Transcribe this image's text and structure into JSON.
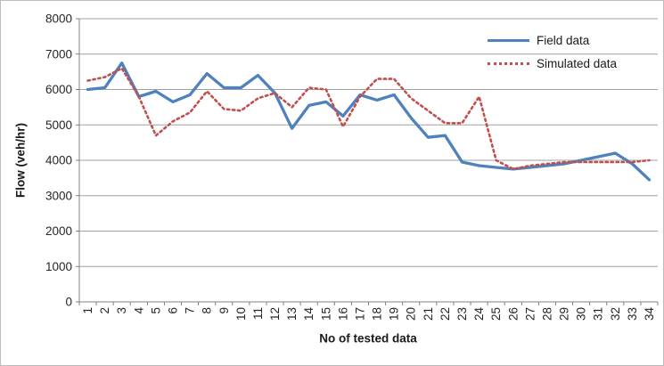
{
  "chart_data": {
    "type": "line",
    "title": "",
    "xlabel": "No of tested data",
    "ylabel": "Flow (veh/hr)",
    "categories": [
      1,
      2,
      3,
      4,
      5,
      6,
      7,
      8,
      9,
      10,
      11,
      12,
      13,
      14,
      15,
      16,
      17,
      18,
      19,
      20,
      21,
      22,
      23,
      24,
      25,
      26,
      27,
      28,
      29,
      30,
      31,
      32,
      33,
      34
    ],
    "series": [
      {
        "name": "Field data",
        "color": "#4F81BD",
        "style": "solid",
        "values": [
          6000,
          6050,
          6750,
          5800,
          5950,
          5650,
          5850,
          6450,
          6050,
          6050,
          6400,
          5900,
          4900,
          5550,
          5650,
          5250,
          5850,
          5700,
          5850,
          5200,
          4650,
          4700,
          3950,
          3850,
          3800,
          3750,
          3800,
          3850,
          3900,
          4000,
          4100,
          4200,
          3900,
          3450
        ]
      },
      {
        "name": "Simulated data",
        "color": "#C0504D",
        "style": "dotted",
        "values": [
          6250,
          6350,
          6600,
          5800,
          4700,
          5100,
          5350,
          5950,
          5450,
          5400,
          5750,
          5900,
          5500,
          6050,
          6000,
          4950,
          5800,
          6300,
          6300,
          5750,
          5400,
          5050,
          5050,
          5800,
          4000,
          3750,
          3850,
          3900,
          3950,
          3950,
          3950,
          3950,
          3950,
          4000
        ]
      }
    ],
    "ylim": [
      0,
      8000
    ],
    "ytick_step": 1000,
    "grid": true,
    "legend_position": "top-right-inside",
    "axis_color": "#808080",
    "gridline_color": "#a0a0a0",
    "tick_label_color": "#262626"
  }
}
